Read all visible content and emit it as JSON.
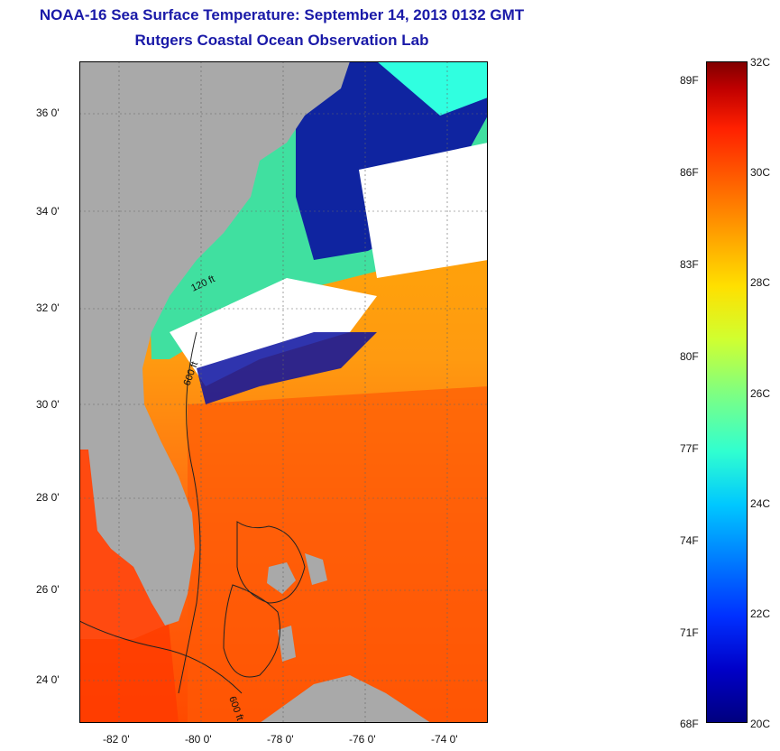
{
  "title": {
    "line1": "NOAA-16 Sea Surface Temperature:  September 14, 2013 0132 GMT",
    "line2": "Rutgers Coastal Ocean Observation Lab"
  },
  "map": {
    "lat_labels": [
      "36 0'",
      "34 0'",
      "32 0'",
      "30 0'",
      "28 0'",
      "26 0'",
      "24 0'"
    ],
    "lon_labels": [
      "-82 0'",
      "-80 0'",
      "-78 0'",
      "-76 0'",
      "-74 0'"
    ],
    "contour_labels": [
      "120 ft",
      "600 ft",
      "600 ft"
    ],
    "colors": {
      "land": "#a9a9a9",
      "cloud": "#ffffff",
      "warm": "#ff6a10",
      "hot": "#ff3000",
      "mid": "#ffb000",
      "cool": "#40ff80",
      "cold": "#0a10a0"
    }
  },
  "colorbar": {
    "celsius": [
      "32C",
      "30C",
      "28C",
      "26C",
      "24C",
      "22C",
      "20C"
    ],
    "fahrenheit": [
      "89F",
      "86F",
      "83F",
      "80F",
      "77F",
      "74F",
      "71F",
      "68F"
    ]
  }
}
